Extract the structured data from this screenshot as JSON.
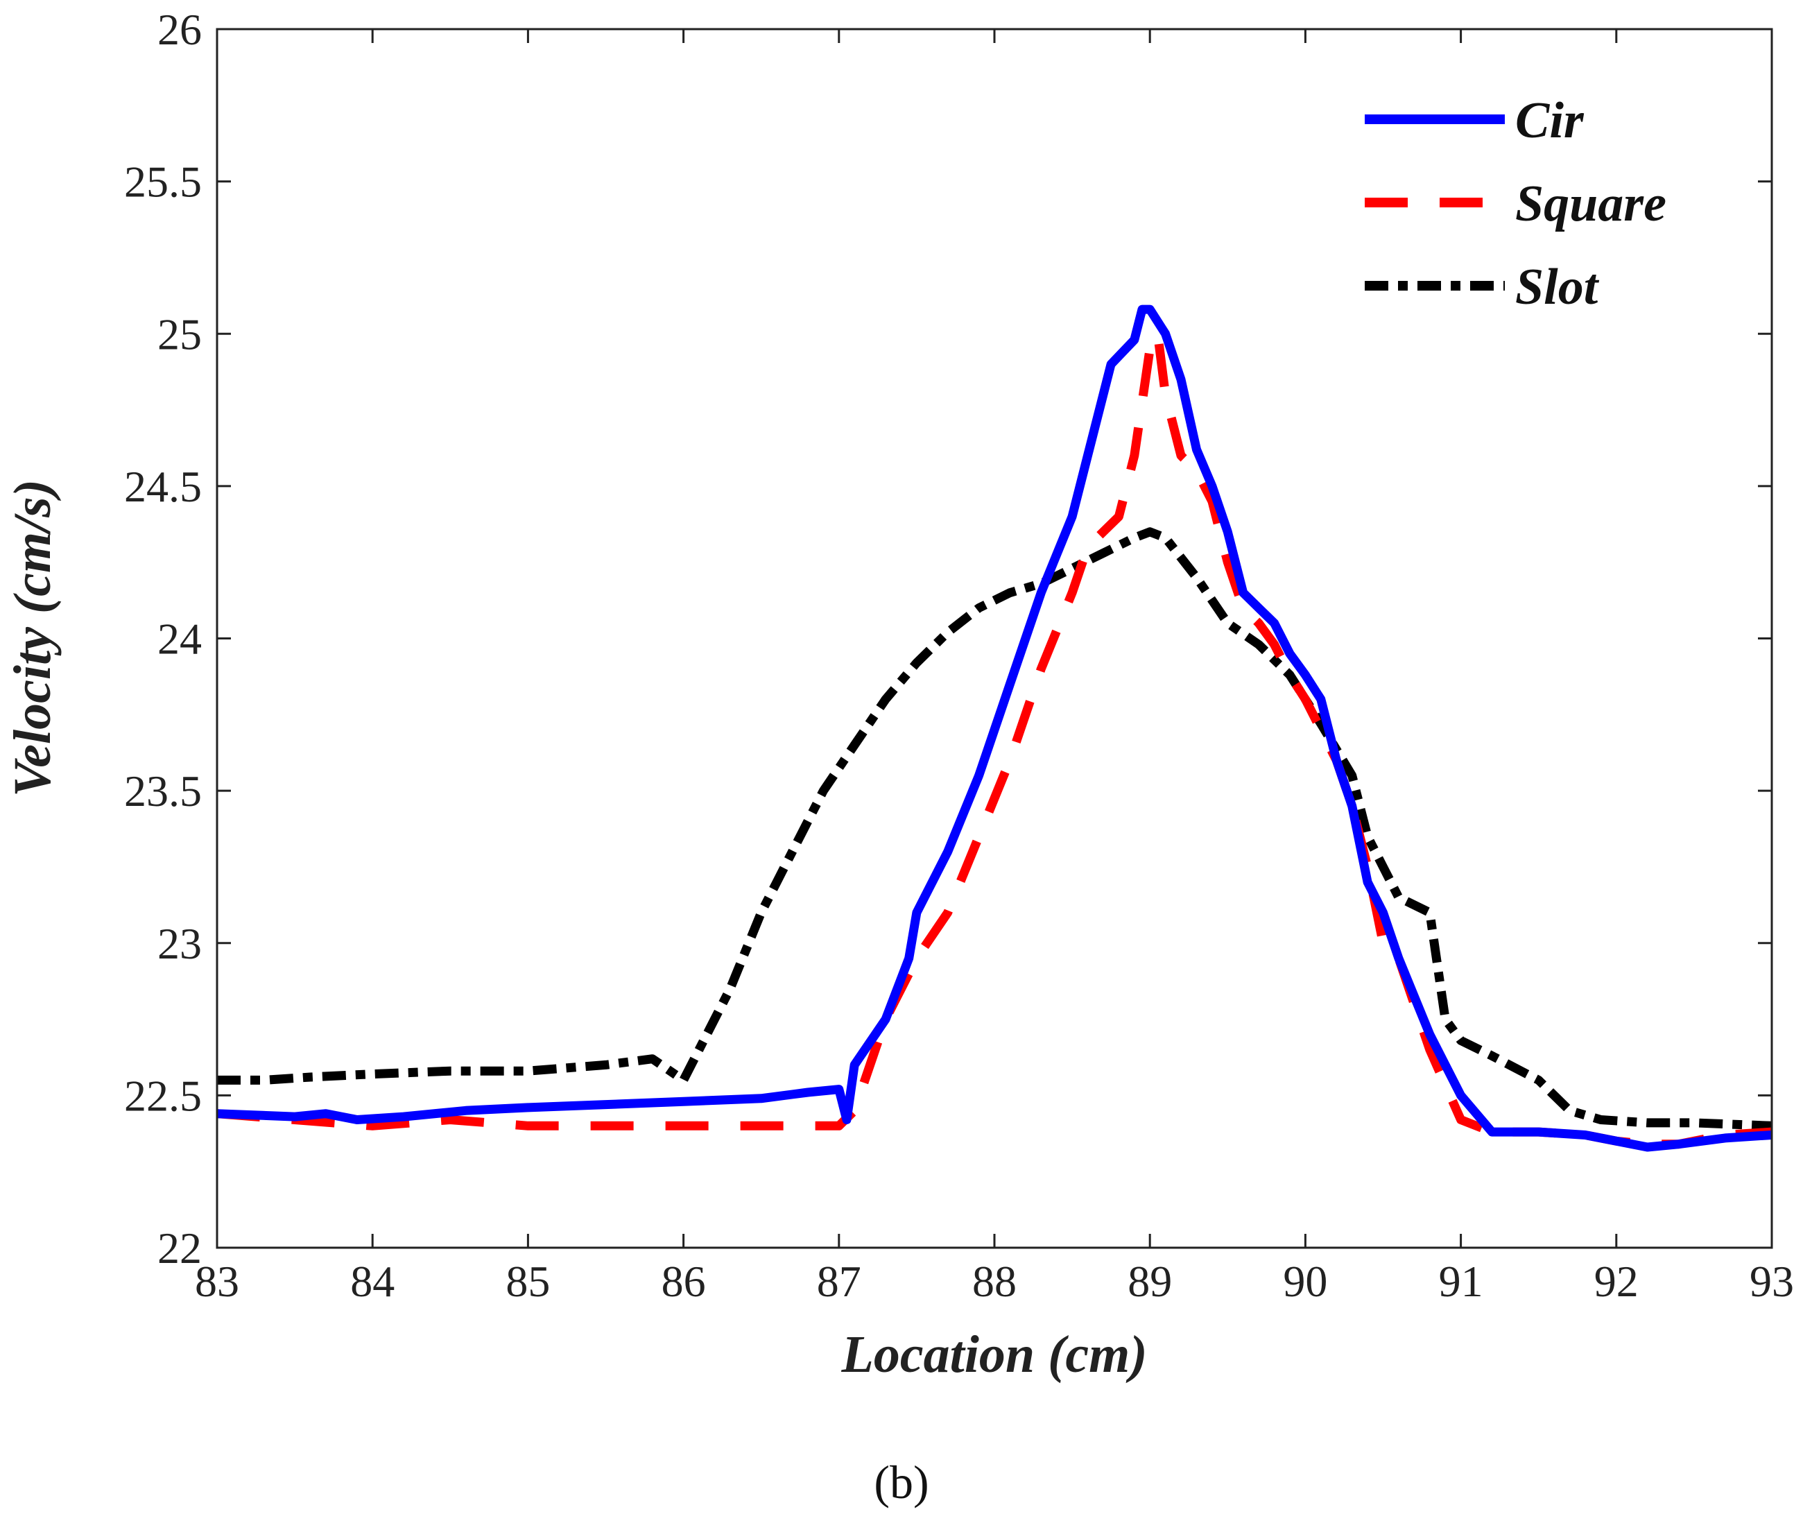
{
  "chart_data": {
    "type": "line",
    "title": "",
    "xlabel": "Location (cm)",
    "ylabel": "Velocity (cm/s)",
    "xlim": [
      83,
      93
    ],
    "ylim": [
      22,
      26
    ],
    "xticks": [
      83,
      84,
      85,
      86,
      87,
      88,
      89,
      90,
      91,
      92,
      93
    ],
    "xtick_labels": [
      "83",
      "84",
      "85",
      "86",
      "87",
      "88",
      "89",
      "90",
      "91",
      "92",
      "93"
    ],
    "yticks": [
      22,
      22.5,
      23,
      23.5,
      24,
      24.5,
      25,
      25.5,
      26
    ],
    "ytick_labels": [
      "22",
      "22.5",
      "23",
      "23.5",
      "24",
      "24.5",
      "25",
      "25.5",
      "26"
    ],
    "grid": false,
    "legend_position": "top-right",
    "caption": "(b)",
    "series": [
      {
        "name": "Cir",
        "color": "#0000ff",
        "style": "solid",
        "x": [
          83,
          83.5,
          83.7,
          83.9,
          84.2,
          84.6,
          85,
          85.5,
          86,
          86.5,
          86.8,
          87,
          87.05,
          87.1,
          87.3,
          87.45,
          87.5,
          87.7,
          87.9,
          88.1,
          88.3,
          88.5,
          88.6,
          88.75,
          88.9,
          88.95,
          89.0,
          89.1,
          89.2,
          89.3,
          89.4,
          89.5,
          89.6,
          89.7,
          89.8,
          89.9,
          90.0,
          90.1,
          90.2,
          90.3,
          90.4,
          90.5,
          90.6,
          90.8,
          91.0,
          91.2,
          91.5,
          91.8,
          92.0,
          92.2,
          92.4,
          92.7,
          93.0
        ],
        "y": [
          22.44,
          22.43,
          22.44,
          22.42,
          22.43,
          22.45,
          22.46,
          22.47,
          22.48,
          22.49,
          22.51,
          22.52,
          22.42,
          22.6,
          22.75,
          22.95,
          23.1,
          23.3,
          23.55,
          23.85,
          24.15,
          24.4,
          24.6,
          24.9,
          24.98,
          25.08,
          25.08,
          25.0,
          24.85,
          24.62,
          24.5,
          24.35,
          24.15,
          24.1,
          24.05,
          23.95,
          23.88,
          23.8,
          23.6,
          23.45,
          23.2,
          23.1,
          22.95,
          22.7,
          22.5,
          22.38,
          22.38,
          22.37,
          22.35,
          22.33,
          22.34,
          22.36,
          22.37
        ]
      },
      {
        "name": "Square",
        "color": "#ff0000",
        "style": "dashed",
        "x": [
          83,
          83.5,
          84,
          84.5,
          85,
          85.5,
          86,
          86.5,
          87,
          87.1,
          87.3,
          87.5,
          87.7,
          87.9,
          88.1,
          88.3,
          88.5,
          88.6,
          88.8,
          88.9,
          89.0,
          89.05,
          89.1,
          89.2,
          89.3,
          89.4,
          89.5,
          89.6,
          89.7,
          89.8,
          89.9,
          90.0,
          90.1,
          90.2,
          90.3,
          90.4,
          90.5,
          90.6,
          90.8,
          91.0,
          91.2,
          91.5,
          91.8,
          92.0,
          92.2,
          92.4,
          92.7,
          93.0
        ],
        "y": [
          22.44,
          22.42,
          22.4,
          22.42,
          22.4,
          22.4,
          22.4,
          22.4,
          22.4,
          22.45,
          22.75,
          22.95,
          23.1,
          23.35,
          23.6,
          23.9,
          24.15,
          24.3,
          24.4,
          24.6,
          24.95,
          25.0,
          24.8,
          24.6,
          24.55,
          24.45,
          24.25,
          24.1,
          24.05,
          23.98,
          23.88,
          23.8,
          23.7,
          23.6,
          23.45,
          23.25,
          23.0,
          22.95,
          22.65,
          22.42,
          22.38,
          22.38,
          22.37,
          22.35,
          22.34,
          22.34,
          22.37,
          22.38
        ]
      },
      {
        "name": "Slot",
        "color": "#000000",
        "style": "dashdot",
        "x": [
          83,
          83.3,
          83.6,
          84,
          84.5,
          85,
          85.5,
          85.8,
          86,
          86.1,
          86.3,
          86.5,
          86.7,
          86.9,
          87.1,
          87.3,
          87.5,
          87.7,
          87.9,
          88.1,
          88.3,
          88.5,
          88.7,
          88.9,
          89.0,
          89.1,
          89.3,
          89.5,
          89.7,
          89.9,
          90.1,
          90.3,
          90.4,
          90.5,
          90.6,
          90.8,
          90.9,
          91.0,
          91.2,
          91.5,
          91.7,
          91.9,
          92.2,
          92.5,
          93.0
        ],
        "y": [
          22.55,
          22.55,
          22.56,
          22.57,
          22.58,
          22.58,
          22.6,
          22.62,
          22.55,
          22.65,
          22.85,
          23.1,
          23.3,
          23.5,
          23.65,
          23.8,
          23.92,
          24.02,
          24.1,
          24.15,
          24.18,
          24.23,
          24.28,
          24.33,
          24.35,
          24.33,
          24.2,
          24.05,
          23.98,
          23.88,
          23.72,
          23.55,
          23.35,
          23.25,
          23.15,
          23.1,
          22.75,
          22.68,
          22.63,
          22.55,
          22.45,
          22.42,
          22.41,
          22.41,
          22.4
        ]
      }
    ]
  }
}
